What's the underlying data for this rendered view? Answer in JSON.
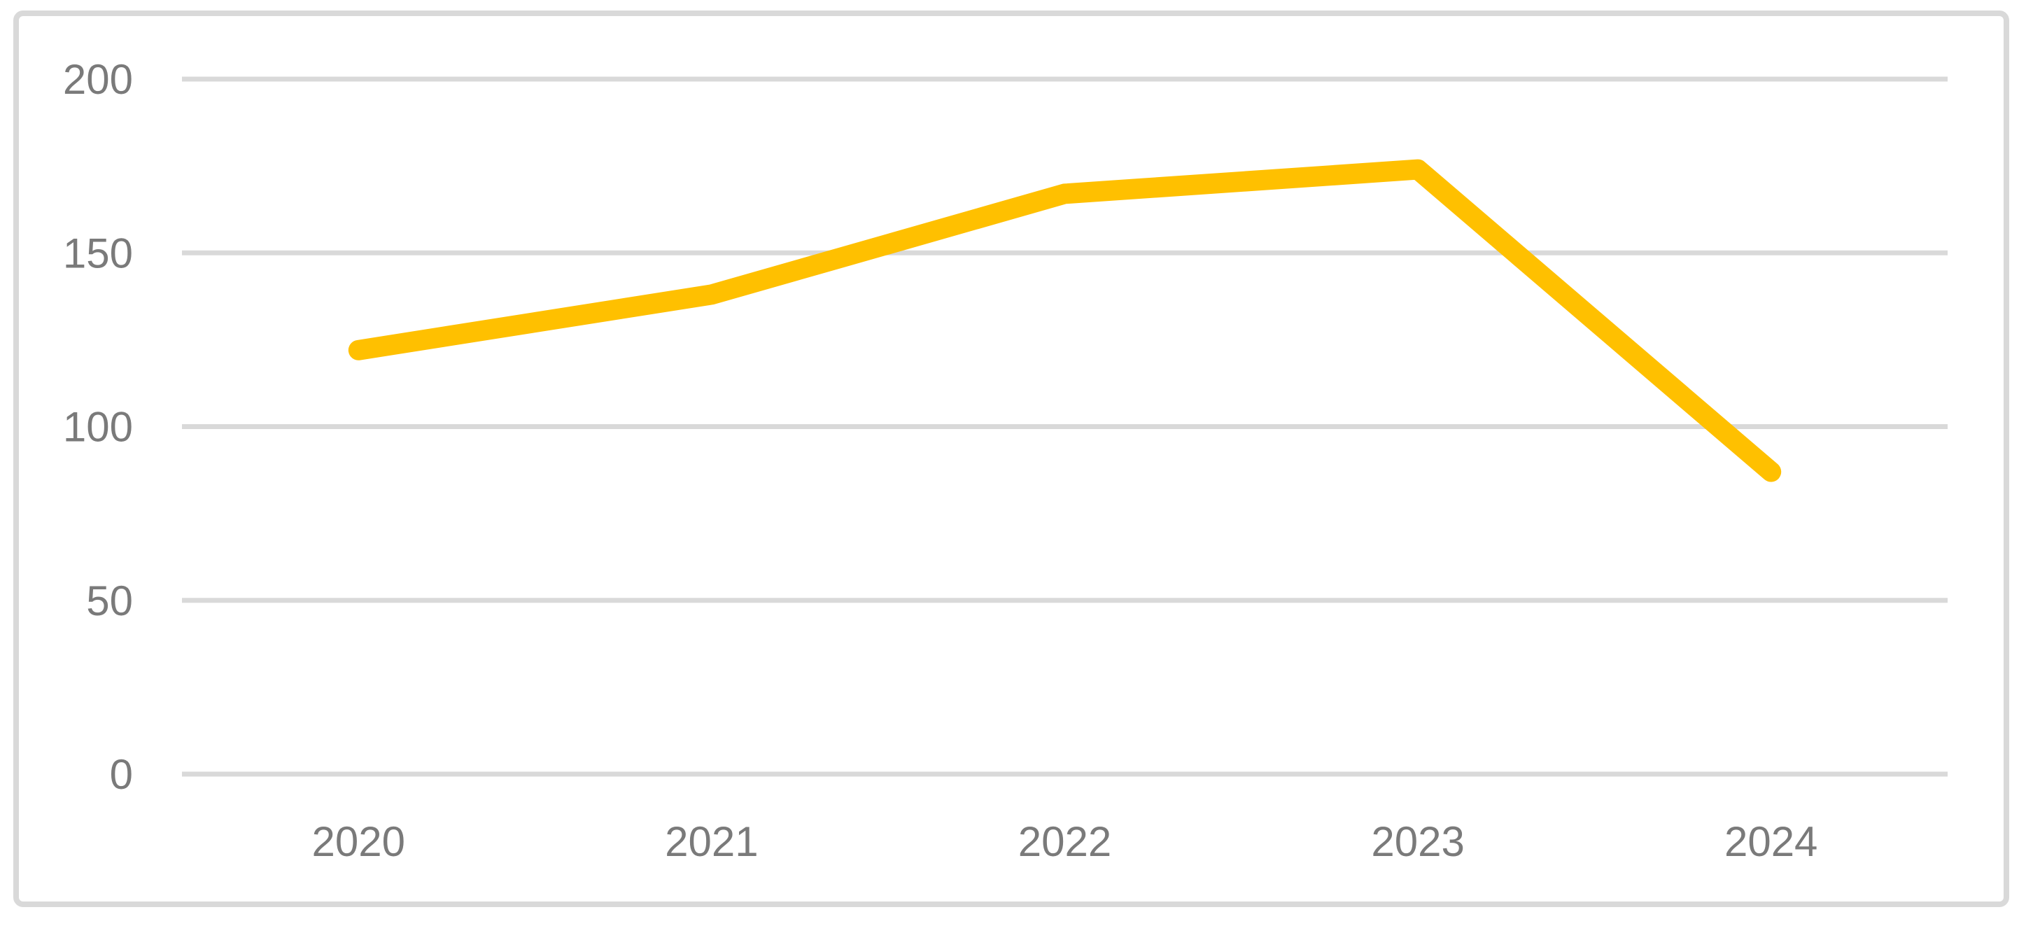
{
  "chart_data": {
    "type": "line",
    "title": "",
    "xlabel": "",
    "ylabel": "",
    "categories": [
      "2020",
      "2021",
      "2022",
      "2023",
      "2024"
    ],
    "series": [
      {
        "values": [
          122,
          138,
          167,
          174,
          87
        ],
        "color": "#FFC000"
      }
    ],
    "ylim": [
      0,
      200
    ],
    "yticks": [
      0,
      50,
      100,
      150,
      200
    ],
    "grid": true,
    "legend": false,
    "colors": {
      "gridline": "#D9D9D9",
      "chart_border": "#D9D9D9",
      "tick_label": "#7A7A7A",
      "background": "#FFFFFF"
    }
  }
}
